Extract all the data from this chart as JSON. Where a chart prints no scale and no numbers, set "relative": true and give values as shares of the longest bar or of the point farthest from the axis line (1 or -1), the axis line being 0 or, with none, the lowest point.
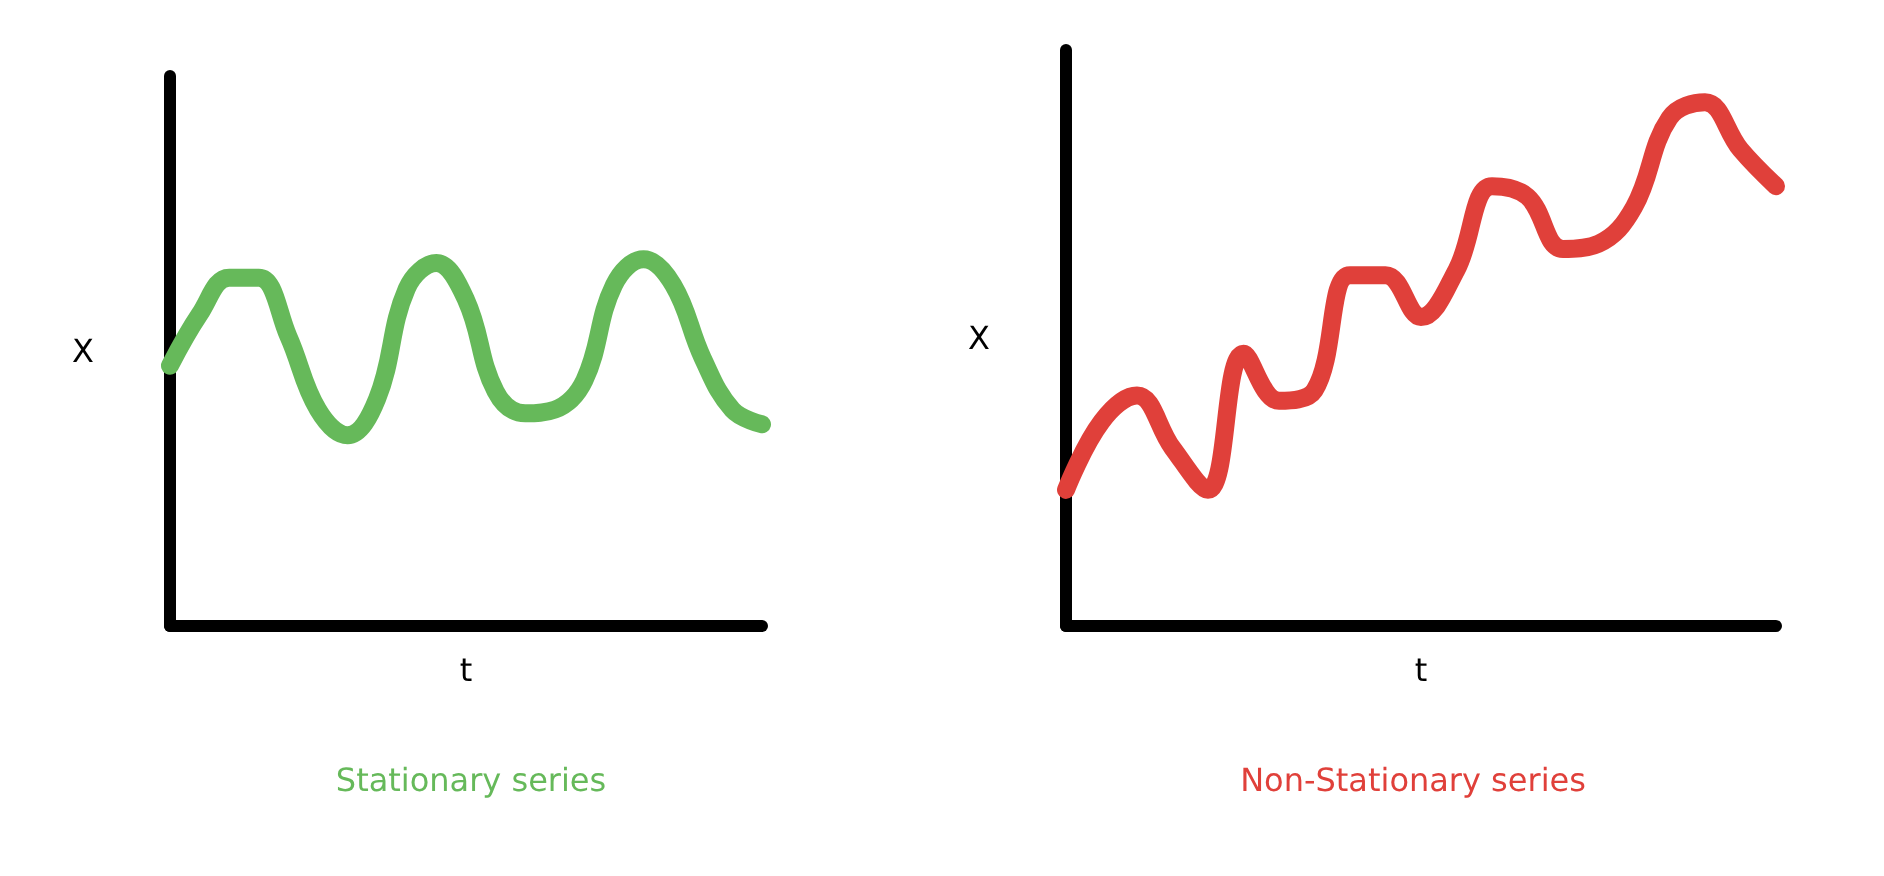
{
  "chart_data": [
    {
      "type": "line",
      "title": "Stationary series",
      "xlabel": "t",
      "ylabel": "X",
      "relative": true,
      "categories": [
        null,
        null,
        null,
        null,
        null,
        null,
        null,
        null,
        null,
        null,
        null,
        null,
        null,
        null,
        null,
        null,
        null,
        null,
        null,
        null,
        null
      ],
      "series": [
        {
          "color": "#66b95a",
          "values": [
            0.71,
            0.85,
            0.95,
            0.95,
            0.79,
            0.59,
            0.52,
            0.62,
            0.92,
            0.99,
            0.89,
            0.64,
            0.58,
            0.59,
            0.67,
            0.93,
            1,
            0.93,
            0.73,
            0.59,
            0.55
          ]
        }
      ]
    },
    {
      "type": "line",
      "title": "Non-Stationary series",
      "xlabel": "t",
      "ylabel": "X",
      "relative": true,
      "categories": [
        null,
        null,
        null,
        null,
        null,
        null,
        null,
        null,
        null,
        null,
        null,
        null,
        null,
        null,
        null,
        null,
        null,
        null,
        null,
        null,
        null
      ],
      "series": [
        {
          "color": "#e0403a",
          "values": [
            0.26,
            0.39,
            0.44,
            0.34,
            0.26,
            0.52,
            0.43,
            0.45,
            0.67,
            0.67,
            0.59,
            0.68,
            0.84,
            0.82,
            0.72,
            0.73,
            0.8,
            0.97,
            1,
            0.91,
            0.84
          ]
        }
      ]
    }
  ]
}
